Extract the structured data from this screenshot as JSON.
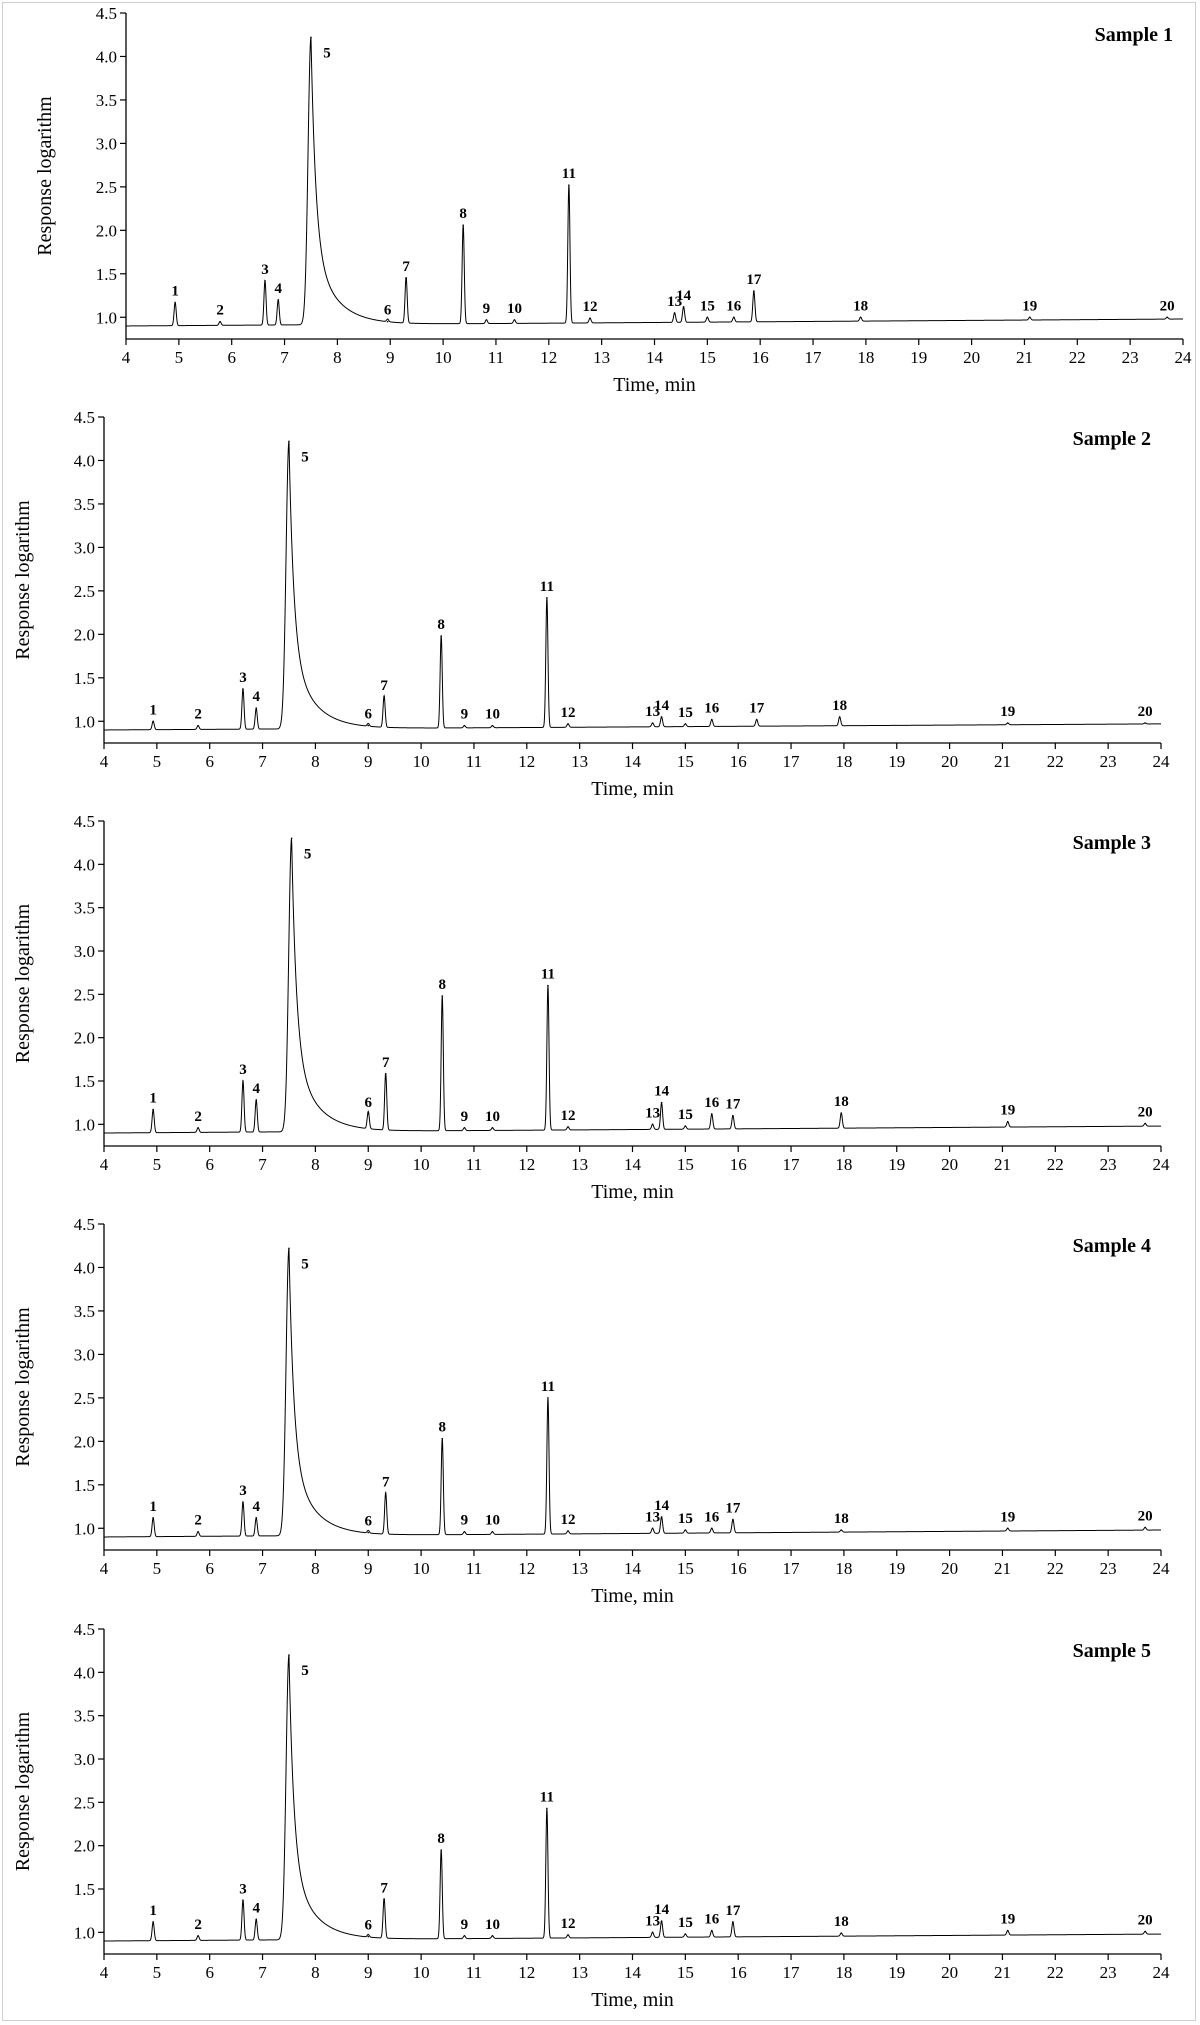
{
  "chart_data": [
    {
      "type": "line",
      "title": "Sample 1",
      "xlabel": "Time, min",
      "ylabel": "Response logarithm",
      "xlim": [
        4,
        24
      ],
      "ylim": [
        0.75,
        4.5
      ],
      "xticks": [
        4,
        5,
        6,
        7,
        8,
        9,
        10,
        11,
        12,
        13,
        14,
        15,
        16,
        17,
        18,
        19,
        20,
        21,
        22,
        23,
        24
      ],
      "yticks": [
        1.0,
        1.5,
        2.0,
        2.5,
        3.0,
        3.5,
        4.0,
        4.5
      ],
      "baseline": 0.9,
      "baseline_end": 0.98,
      "peaks": [
        {
          "label": "1",
          "x": 4.93,
          "y": 1.17
        },
        {
          "label": "2",
          "x": 5.78,
          "y": 0.95
        },
        {
          "label": "3",
          "x": 6.63,
          "y": 1.42
        },
        {
          "label": "4",
          "x": 6.88,
          "y": 1.2
        },
        {
          "label": "5",
          "x": 7.5,
          "y": 4.22
        },
        {
          "label": "6",
          "x": 8.95,
          "y": 0.95
        },
        {
          "label": "7",
          "x": 9.3,
          "y": 1.45
        },
        {
          "label": "8",
          "x": 10.38,
          "y": 2.06
        },
        {
          "label": "9",
          "x": 10.82,
          "y": 0.97
        },
        {
          "label": "10",
          "x": 11.35,
          "y": 0.97
        },
        {
          "label": "11",
          "x": 12.38,
          "y": 2.52
        },
        {
          "label": "12",
          "x": 12.78,
          "y": 0.99
        },
        {
          "label": "13",
          "x": 14.38,
          "y": 1.05
        },
        {
          "label": "14",
          "x": 14.55,
          "y": 1.12
        },
        {
          "label": "15",
          "x": 15.0,
          "y": 1.0
        },
        {
          "label": "16",
          "x": 15.5,
          "y": 1.0
        },
        {
          "label": "17",
          "x": 15.88,
          "y": 1.3
        },
        {
          "label": "18",
          "x": 17.9,
          "y": 1.0
        },
        {
          "label": "19",
          "x": 21.1,
          "y": 1.0
        },
        {
          "label": "20",
          "x": 23.7,
          "y": 1.0
        }
      ]
    },
    {
      "type": "line",
      "title": "Sample 2",
      "xlabel": "Time, min",
      "ylabel": "Response logarithm",
      "xlim": [
        4,
        24
      ],
      "ylim": [
        0.75,
        4.5
      ],
      "xticks": [
        4,
        5,
        6,
        7,
        8,
        9,
        10,
        11,
        12,
        13,
        14,
        15,
        16,
        17,
        18,
        19,
        20,
        21,
        22,
        23,
        24
      ],
      "yticks": [
        1.0,
        1.5,
        2.0,
        2.5,
        3.0,
        3.5,
        4.0,
        4.5
      ],
      "baseline": 0.9,
      "baseline_end": 0.97,
      "peaks": [
        {
          "label": "1",
          "x": 4.93,
          "y": 1.0
        },
        {
          "label": "2",
          "x": 5.78,
          "y": 0.95
        },
        {
          "label": "3",
          "x": 6.63,
          "y": 1.37
        },
        {
          "label": "4",
          "x": 6.88,
          "y": 1.15
        },
        {
          "label": "5",
          "x": 7.5,
          "y": 4.22
        },
        {
          "label": "6",
          "x": 9.0,
          "y": 0.95
        },
        {
          "label": "7",
          "x": 9.3,
          "y": 1.28
        },
        {
          "label": "8",
          "x": 10.38,
          "y": 1.98
        },
        {
          "label": "9",
          "x": 10.82,
          "y": 0.95
        },
        {
          "label": "10",
          "x": 11.35,
          "y": 0.95
        },
        {
          "label": "11",
          "x": 12.38,
          "y": 2.42
        },
        {
          "label": "12",
          "x": 12.78,
          "y": 0.97
        },
        {
          "label": "13",
          "x": 14.38,
          "y": 0.98
        },
        {
          "label": "14",
          "x": 14.55,
          "y": 1.05
        },
        {
          "label": "15",
          "x": 15.0,
          "y": 0.97
        },
        {
          "label": "16",
          "x": 15.5,
          "y": 1.02
        },
        {
          "label": "17",
          "x": 16.35,
          "y": 1.02
        },
        {
          "label": "18",
          "x": 17.92,
          "y": 1.05
        },
        {
          "label": "19",
          "x": 21.1,
          "y": 0.98
        },
        {
          "label": "20",
          "x": 23.7,
          "y": 0.98
        }
      ]
    },
    {
      "type": "line",
      "title": "Sample 3",
      "xlabel": "Time, min",
      "ylabel": "Response logarithm",
      "xlim": [
        4,
        24
      ],
      "ylim": [
        0.75,
        4.5
      ],
      "xticks": [
        4,
        5,
        6,
        7,
        8,
        9,
        10,
        11,
        12,
        13,
        14,
        15,
        16,
        17,
        18,
        19,
        20,
        21,
        22,
        23,
        24
      ],
      "yticks": [
        1.0,
        1.5,
        2.0,
        2.5,
        3.0,
        3.5,
        4.0,
        4.5
      ],
      "baseline": 0.9,
      "baseline_end": 0.98,
      "peaks": [
        {
          "label": "1",
          "x": 4.93,
          "y": 1.17
        },
        {
          "label": "2",
          "x": 5.78,
          "y": 0.96
        },
        {
          "label": "3",
          "x": 6.63,
          "y": 1.5
        },
        {
          "label": "4",
          "x": 6.88,
          "y": 1.28
        },
        {
          "label": "5",
          "x": 7.55,
          "y": 4.3
        },
        {
          "label": "6",
          "x": 9.0,
          "y": 1.12
        },
        {
          "label": "7",
          "x": 9.33,
          "y": 1.58
        },
        {
          "label": "8",
          "x": 10.4,
          "y": 2.48
        },
        {
          "label": "9",
          "x": 10.82,
          "y": 0.96
        },
        {
          "label": "10",
          "x": 11.35,
          "y": 0.96
        },
        {
          "label": "11",
          "x": 12.4,
          "y": 2.6
        },
        {
          "label": "12",
          "x": 12.78,
          "y": 0.97
        },
        {
          "label": "13",
          "x": 14.38,
          "y": 1.0
        },
        {
          "label": "14",
          "x": 14.55,
          "y": 1.25
        },
        {
          "label": "15",
          "x": 15.0,
          "y": 0.98
        },
        {
          "label": "16",
          "x": 15.5,
          "y": 1.12
        },
        {
          "label": "17",
          "x": 15.9,
          "y": 1.1
        },
        {
          "label": "18",
          "x": 17.95,
          "y": 1.13
        },
        {
          "label": "19",
          "x": 21.1,
          "y": 1.03
        },
        {
          "label": "20",
          "x": 23.7,
          "y": 1.01
        }
      ]
    },
    {
      "type": "line",
      "title": "Sample 4",
      "xlabel": "Time, min",
      "ylabel": "Response logarithm",
      "xlim": [
        4,
        24
      ],
      "ylim": [
        0.75,
        4.5
      ],
      "xticks": [
        4,
        5,
        6,
        7,
        8,
        9,
        10,
        11,
        12,
        13,
        14,
        15,
        16,
        17,
        18,
        19,
        20,
        21,
        22,
        23,
        24
      ],
      "yticks": [
        1.0,
        1.5,
        2.0,
        2.5,
        3.0,
        3.5,
        4.0,
        4.5
      ],
      "baseline": 0.9,
      "baseline_end": 0.98,
      "peaks": [
        {
          "label": "1",
          "x": 4.93,
          "y": 1.12
        },
        {
          "label": "2",
          "x": 5.78,
          "y": 0.96
        },
        {
          "label": "3",
          "x": 6.63,
          "y": 1.3
        },
        {
          "label": "4",
          "x": 6.88,
          "y": 1.12
        },
        {
          "label": "5",
          "x": 7.5,
          "y": 4.22
        },
        {
          "label": "6",
          "x": 9.0,
          "y": 0.95
        },
        {
          "label": "7",
          "x": 9.33,
          "y": 1.4
        },
        {
          "label": "8",
          "x": 10.4,
          "y": 2.03
        },
        {
          "label": "9",
          "x": 10.82,
          "y": 0.96
        },
        {
          "label": "10",
          "x": 11.35,
          "y": 0.96
        },
        {
          "label": "11",
          "x": 12.4,
          "y": 2.5
        },
        {
          "label": "12",
          "x": 12.78,
          "y": 0.97
        },
        {
          "label": "13",
          "x": 14.38,
          "y": 1.0
        },
        {
          "label": "14",
          "x": 14.55,
          "y": 1.13
        },
        {
          "label": "15",
          "x": 15.0,
          "y": 0.98
        },
        {
          "label": "16",
          "x": 15.5,
          "y": 1.0
        },
        {
          "label": "17",
          "x": 15.9,
          "y": 1.1
        },
        {
          "label": "18",
          "x": 17.95,
          "y": 0.98
        },
        {
          "label": "19",
          "x": 21.1,
          "y": 1.0
        },
        {
          "label": "20",
          "x": 23.7,
          "y": 1.01
        }
      ]
    },
    {
      "type": "line",
      "title": "Sample 5",
      "xlabel": "Time, min",
      "ylabel": "Response logarithm",
      "xlim": [
        4,
        24
      ],
      "ylim": [
        0.75,
        4.5
      ],
      "xticks": [
        4,
        5,
        6,
        7,
        8,
        9,
        10,
        11,
        12,
        13,
        14,
        15,
        16,
        17,
        18,
        19,
        20,
        21,
        22,
        23,
        24
      ],
      "yticks": [
        1.0,
        1.5,
        2.0,
        2.5,
        3.0,
        3.5,
        4.0,
        4.5
      ],
      "baseline": 0.9,
      "baseline_end": 0.98,
      "peaks": [
        {
          "label": "1",
          "x": 4.93,
          "y": 1.12
        },
        {
          "label": "2",
          "x": 5.78,
          "y": 0.96
        },
        {
          "label": "3",
          "x": 6.63,
          "y": 1.37
        },
        {
          "label": "4",
          "x": 6.88,
          "y": 1.15
        },
        {
          "label": "5",
          "x": 7.5,
          "y": 4.2
        },
        {
          "label": "6",
          "x": 9.0,
          "y": 0.95
        },
        {
          "label": "7",
          "x": 9.3,
          "y": 1.38
        },
        {
          "label": "8",
          "x": 10.38,
          "y": 1.95
        },
        {
          "label": "9",
          "x": 10.82,
          "y": 0.96
        },
        {
          "label": "10",
          "x": 11.35,
          "y": 0.96
        },
        {
          "label": "11",
          "x": 12.38,
          "y": 2.43
        },
        {
          "label": "12",
          "x": 12.78,
          "y": 0.97
        },
        {
          "label": "13",
          "x": 14.38,
          "y": 1.0
        },
        {
          "label": "14",
          "x": 14.55,
          "y": 1.13
        },
        {
          "label": "15",
          "x": 15.0,
          "y": 0.98
        },
        {
          "label": "16",
          "x": 15.5,
          "y": 1.02
        },
        {
          "label": "17",
          "x": 15.9,
          "y": 1.12
        },
        {
          "label": "18",
          "x": 17.95,
          "y": 0.99
        },
        {
          "label": "19",
          "x": 21.1,
          "y": 1.02
        },
        {
          "label": "20",
          "x": 23.7,
          "y": 1.01
        }
      ]
    }
  ]
}
